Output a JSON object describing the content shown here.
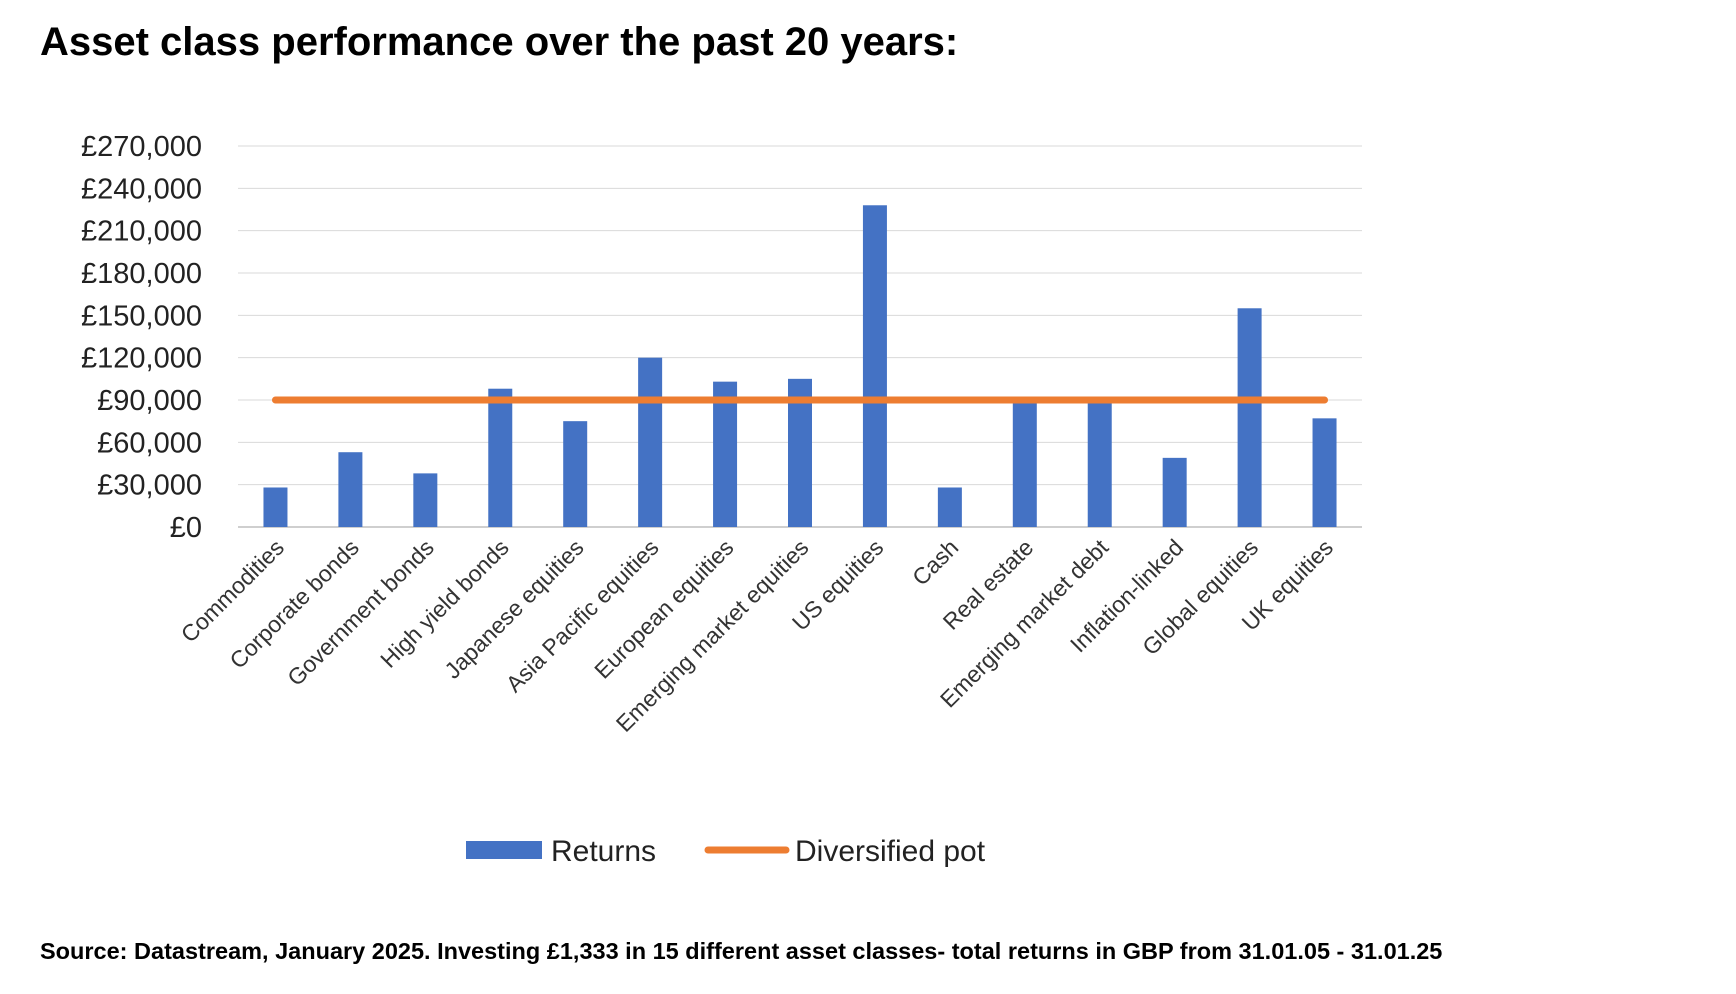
{
  "title": "Asset class performance over the past 20 years:",
  "source": "Source: Datastream, January 2025. Investing £1,333 in 15 different asset classes- total returns in GBP from 31.01.05 - 31.01.25",
  "colors": {
    "returns": "#4472C4",
    "diversified": "#ED7D31",
    "grid": "#d9d9d9"
  },
  "chart_data": {
    "type": "bar",
    "categories": [
      "Commodities",
      "Corporate bonds",
      "Government bonds",
      "High yield bonds",
      "Japanese equities",
      "Asia Pacific equities",
      "European equities",
      "Emerging market equities",
      "US equities",
      "Cash",
      "Real estate",
      "Emerging market debt",
      "Inflation-linked",
      "Global equities",
      "UK equities"
    ],
    "series": [
      {
        "name": "Returns",
        "type": "bar",
        "values": [
          28000,
          53000,
          38000,
          98000,
          75000,
          120000,
          103000,
          105000,
          228000,
          28000,
          88000,
          88000,
          49000,
          155000,
          77000
        ]
      },
      {
        "name": "Diversified pot",
        "type": "line",
        "values": [
          90000,
          90000,
          90000,
          90000,
          90000,
          90000,
          90000,
          90000,
          90000,
          90000,
          90000,
          90000,
          90000,
          90000,
          90000
        ]
      }
    ],
    "yticks": [
      "£0",
      "£30,000",
      "£60,000",
      "£90,000",
      "£120,000",
      "£150,000",
      "£180,000",
      "£210,000",
      "£240,000",
      "£270,000"
    ],
    "ylim": [
      0,
      270000
    ],
    "grid": true,
    "legend": "bottom"
  }
}
